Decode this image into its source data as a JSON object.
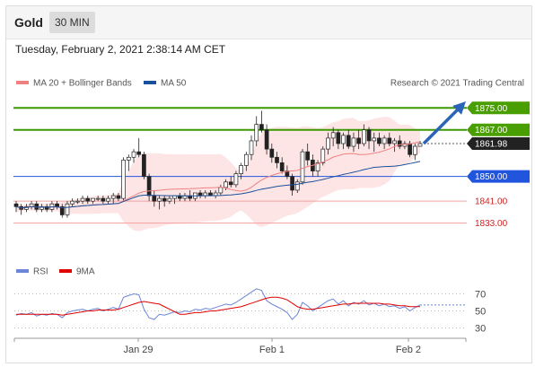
{
  "header": {
    "symbol": "Gold",
    "timeframe": "30 MIN"
  },
  "timestamp": "Tuesday, February 2, 2021 2:38:14 AM CET",
  "legend": {
    "ma20": "MA 20 + Bollinger Bands",
    "ma50": "MA 50",
    "credit": "Research © 2021 Trading Central"
  },
  "rsi_legend": {
    "rsi": "RSI",
    "ma9": "9MA"
  },
  "colors": {
    "ma20": "#f08080",
    "ma50": "#1a4f9c",
    "resistance": "#3c9a00",
    "support_blue": "#2255dd",
    "support_red": "#f4a0a0",
    "bollinger_fill": "#fde0e0",
    "arrow": "#2a63b8",
    "rsi": "#6b86d6",
    "rsi_ma": "#e00000"
  },
  "chart_data": [
    {
      "type": "candlestick",
      "x_ticks": [
        "Jan 29",
        "Feb 1",
        "Feb 2"
      ],
      "current_price": "1861.98",
      "levels": [
        {
          "value": "1875.00",
          "kind": "resistance",
          "style": "filled"
        },
        {
          "value": "1867.00",
          "kind": "resistance",
          "style": "filled"
        },
        {
          "value": "1850.00",
          "kind": "support",
          "style": "filled"
        },
        {
          "value": "1841.00",
          "kind": "support",
          "style": "text"
        },
        {
          "value": "1833.00",
          "kind": "support",
          "style": "text"
        }
      ],
      "ylim": [
        1826,
        1880
      ],
      "overlays": [
        "MA 20 + Bollinger Bands",
        "MA 50"
      ],
      "candles": [
        [
          1840,
          1841,
          1837,
          1839
        ],
        [
          1839,
          1840,
          1836,
          1838
        ],
        [
          1838,
          1840,
          1837,
          1839
        ],
        [
          1839,
          1841,
          1838,
          1840
        ],
        [
          1840,
          1841,
          1837,
          1838
        ],
        [
          1838,
          1840,
          1837,
          1839
        ],
        [
          1839,
          1840,
          1837,
          1838
        ],
        [
          1838,
          1841,
          1837,
          1840
        ],
        [
          1840,
          1841,
          1838,
          1839
        ],
        [
          1839,
          1840,
          1835,
          1836
        ],
        [
          1836,
          1841,
          1835,
          1840
        ],
        [
          1840,
          1842,
          1839,
          1841
        ],
        [
          1841,
          1842,
          1840,
          1841
        ],
        [
          1841,
          1843,
          1840,
          1842
        ],
        [
          1842,
          1843,
          1840,
          1841
        ],
        [
          1841,
          1842,
          1840,
          1842
        ],
        [
          1842,
          1843,
          1841,
          1842
        ],
        [
          1842,
          1843,
          1840,
          1841
        ],
        [
          1841,
          1843,
          1840,
          1842
        ],
        [
          1842,
          1844,
          1840,
          1843
        ],
        [
          1843,
          1844,
          1841,
          1842
        ],
        [
          1842,
          1857,
          1841,
          1856
        ],
        [
          1856,
          1858,
          1852,
          1857
        ],
        [
          1857,
          1860,
          1855,
          1859
        ],
        [
          1859,
          1864,
          1857,
          1858
        ],
        [
          1858,
          1859,
          1849,
          1850
        ],
        [
          1850,
          1851,
          1841,
          1843
        ],
        [
          1843,
          1845,
          1839,
          1841
        ],
        [
          1841,
          1843,
          1838,
          1842
        ],
        [
          1842,
          1843,
          1839,
          1841
        ],
        [
          1841,
          1843,
          1840,
          1842
        ],
        [
          1842,
          1843,
          1840,
          1843
        ],
        [
          1843,
          1844,
          1841,
          1842
        ],
        [
          1842,
          1844,
          1841,
          1843
        ],
        [
          1843,
          1845,
          1841,
          1842
        ],
        [
          1842,
          1844,
          1841,
          1844
        ],
        [
          1844,
          1845,
          1842,
          1843
        ],
        [
          1843,
          1845,
          1842,
          1844
        ],
        [
          1844,
          1845,
          1843,
          1843
        ],
        [
          1843,
          1845,
          1842,
          1844
        ],
        [
          1844,
          1847,
          1843,
          1846
        ],
        [
          1846,
          1849,
          1845,
          1848
        ],
        [
          1848,
          1850,
          1846,
          1847
        ],
        [
          1847,
          1852,
          1846,
          1851
        ],
        [
          1851,
          1855,
          1849,
          1854
        ],
        [
          1854,
          1859,
          1852,
          1858
        ],
        [
          1858,
          1865,
          1856,
          1863
        ],
        [
          1863,
          1872,
          1861,
          1869
        ],
        [
          1869,
          1874,
          1866,
          1867
        ],
        [
          1867,
          1869,
          1858,
          1860
        ],
        [
          1860,
          1862,
          1855,
          1857
        ],
        [
          1857,
          1859,
          1853,
          1855
        ],
        [
          1855,
          1857,
          1851,
          1852
        ],
        [
          1852,
          1854,
          1849,
          1850
        ],
        [
          1850,
          1851,
          1843,
          1845
        ],
        [
          1845,
          1849,
          1844,
          1848
        ],
        [
          1848,
          1860,
          1847,
          1859
        ],
        [
          1859,
          1862,
          1854,
          1856
        ],
        [
          1856,
          1858,
          1850,
          1852
        ],
        [
          1852,
          1856,
          1850,
          1855
        ],
        [
          1855,
          1861,
          1854,
          1860
        ],
        [
          1860,
          1866,
          1858,
          1864
        ],
        [
          1864,
          1868,
          1861,
          1866
        ],
        [
          1866,
          1867,
          1860,
          1862
        ],
        [
          1862,
          1866,
          1860,
          1865
        ],
        [
          1865,
          1867,
          1860,
          1861
        ],
        [
          1861,
          1866,
          1859,
          1864
        ],
        [
          1864,
          1867,
          1860,
          1862
        ],
        [
          1862,
          1869,
          1861,
          1867
        ],
        [
          1867,
          1868,
          1860,
          1863
        ],
        [
          1863,
          1866,
          1859,
          1864
        ],
        [
          1864,
          1866,
          1861,
          1862
        ],
        [
          1862,
          1865,
          1860,
          1864
        ],
        [
          1864,
          1866,
          1861,
          1862
        ],
        [
          1862,
          1864,
          1859,
          1863
        ],
        [
          1863,
          1865,
          1860,
          1861
        ],
        [
          1861,
          1863,
          1860,
          1862
        ],
        [
          1862,
          1863,
          1857,
          1858
        ],
        [
          1858,
          1862,
          1856,
          1861
        ],
        [
          1861,
          1863,
          1861,
          1862
        ]
      ]
    },
    {
      "type": "line",
      "name": "RSI",
      "y_ticks": [
        "70",
        "50",
        "30"
      ],
      "ylim": [
        20,
        80
      ],
      "series": [
        {
          "name": "RSI",
          "values": [
            45,
            47,
            46,
            48,
            44,
            46,
            45,
            47,
            46,
            42,
            48,
            50,
            51,
            52,
            50,
            52,
            53,
            50,
            52,
            54,
            52,
            66,
            68,
            70,
            69,
            52,
            42,
            40,
            46,
            45,
            47,
            49,
            48,
            50,
            49,
            52,
            51,
            53,
            52,
            54,
            56,
            58,
            57,
            60,
            64,
            68,
            72,
            76,
            74,
            62,
            58,
            55,
            52,
            48,
            40,
            46,
            60,
            56,
            50,
            54,
            58,
            62,
            64,
            58,
            62,
            56,
            60,
            58,
            62,
            57,
            59,
            56,
            58,
            55,
            56,
            53,
            55,
            50,
            54,
            57
          ]
        },
        {
          "name": "9MA",
          "values": [
            46,
            46,
            46,
            46,
            46,
            46,
            46,
            46,
            46,
            45,
            46,
            47,
            48,
            49,
            50,
            50,
            51,
            51,
            51,
            51,
            52,
            54,
            56,
            58,
            60,
            61,
            60,
            59,
            58,
            55,
            52,
            49,
            46,
            46,
            47,
            48,
            48,
            49,
            50,
            50,
            51,
            52,
            53,
            54,
            55,
            57,
            59,
            61,
            63,
            65,
            66,
            66,
            65,
            63,
            59,
            55,
            53,
            52,
            52,
            53,
            54,
            55,
            56,
            57,
            58,
            58,
            59,
            59,
            59,
            59,
            59,
            59,
            58,
            58,
            57,
            56,
            56,
            55,
            55,
            55
          ]
        }
      ]
    }
  ]
}
